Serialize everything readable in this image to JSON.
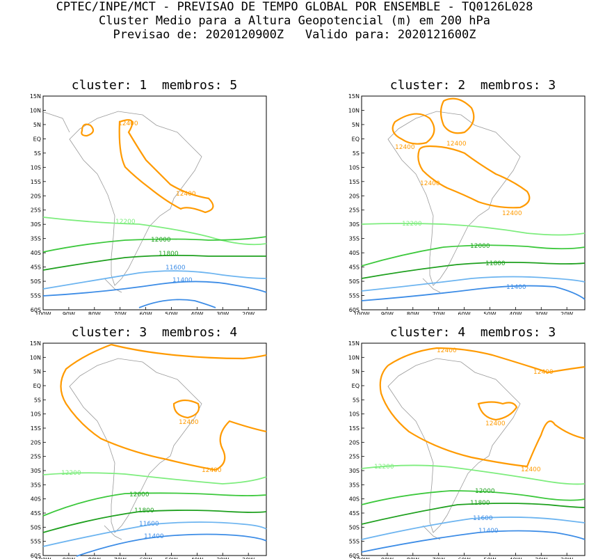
{
  "header": {
    "line1": "CPTEC/INPE/MCT - PREVISAO DE TEMPO GLOBAL POR ENSEMBLE - TQ0126L028",
    "line2": "Cluster Medio para a Altura Geopotencial (m) em 200 hPa",
    "line3": "Previsao de: 2020120900Z   Valido para: 2020121600Z"
  },
  "axes": {
    "lat_labels": [
      "15N",
      "10N",
      "5N",
      "EQ",
      "5S",
      "10S",
      "15S",
      "20S",
      "25S",
      "30S",
      "35S",
      "40S",
      "45S",
      "50S",
      "55S",
      "60S"
    ],
    "lon_labels": [
      "100W",
      "90W",
      "80W",
      "70W",
      "60W",
      "50W",
      "40W",
      "30W",
      "20W"
    ]
  },
  "contour_colors": {
    "12400": "#ff9a00",
    "12200": "#7ded7d",
    "12000": "#3cc83c",
    "11800": "#1ea01e",
    "11600": "#6cb4f0",
    "11400": "#3c8ce6",
    "coast": "#999999"
  },
  "panels": [
    {
      "title": "cluster: 1  membros: 5",
      "labels": {
        "l12400a": "12400",
        "l12400b": "12400",
        "l12200": "12200",
        "l12000": "12000",
        "l11800": "11800",
        "l11600": "11600",
        "l11400": "11400"
      }
    },
    {
      "title": "cluster: 2  membros: 3",
      "labels": {
        "l12400a": "12400",
        "l12400b": "12400",
        "l12400c": "12400",
        "l12400d": "12400",
        "l12200": "12200",
        "l12000": "12000",
        "l11800": "11800",
        "l11400": "11400"
      }
    },
    {
      "title": "cluster: 3  membros: 4",
      "labels": {
        "l12400a": "12400",
        "l12400b": "12400",
        "l12200": "12200",
        "l12000": "12000",
        "l11800": "11800",
        "l11600": "11600",
        "l11400": "11400"
      }
    },
    {
      "title": "cluster: 4  membros: 3",
      "labels": {
        "l12400a": "12400",
        "l12400b": "12400",
        "l12400c": "12400",
        "l12400d": "12400",
        "l12200": "12200",
        "l12000": "12000",
        "l11800": "11800",
        "l11600": "11600",
        "l11400": "11400"
      }
    }
  ]
}
